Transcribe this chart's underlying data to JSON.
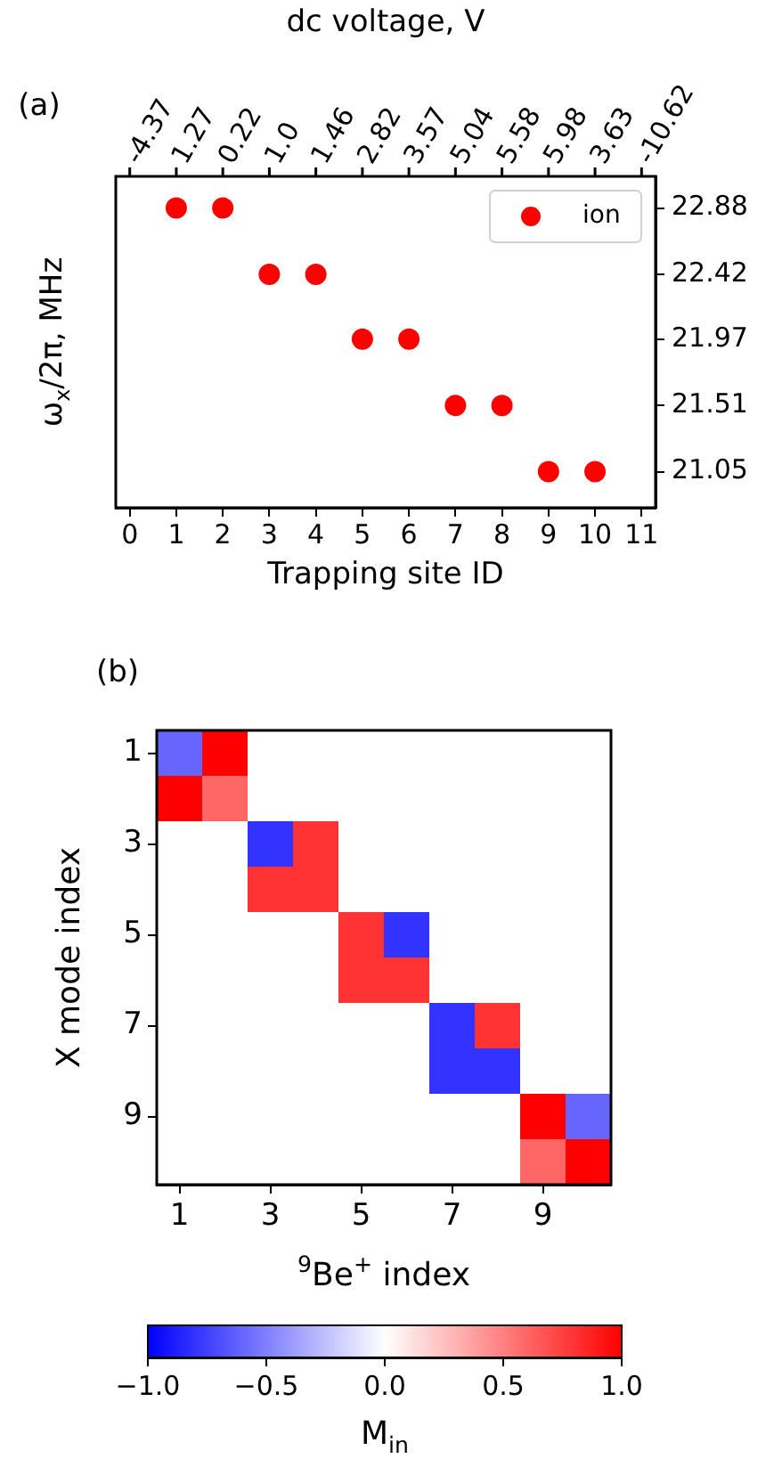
{
  "chart_data": [
    {
      "type": "scatter",
      "x": [
        1,
        2,
        3,
        4,
        5,
        6,
        7,
        8,
        9,
        10
      ],
      "series": [
        {
          "name": "ion",
          "color": "#ff0000",
          "values": [
            22.88,
            22.88,
            22.42,
            22.42,
            21.97,
            21.97,
            21.51,
            21.51,
            21.05,
            21.05
          ]
        }
      ],
      "xlim": [
        -0.3,
        11.3
      ],
      "xticks": [
        0,
        1,
        2,
        3,
        4,
        5,
        6,
        7,
        8,
        9,
        10,
        11
      ],
      "x2label": "dc voltage, V",
      "xlabel": "Trapping site ID",
      "ylabel": "ω$_{x}$/2π, MHz",
      "ylim": [
        20.8,
        23.1
      ],
      "yticks": [
        21.05,
        21.51,
        21.97,
        22.42,
        22.88
      ],
      "annotations": [
        "(a)",
        "-4.37",
        "1.27",
        "0.22",
        "1.0",
        "1.46",
        "2.82",
        "3.57",
        "5.04",
        "5.58",
        "5.98",
        "3.63",
        "-10.62"
      ],
      "legend": "top right",
      "marker": "circle"
    },
    {
      "type": "heatmap",
      "categories": [
        "1",
        null,
        "3",
        null,
        "5",
        null,
        "7",
        null,
        "9",
        null
      ],
      "y_categories": [
        "1",
        null,
        "3",
        null,
        "5",
        null,
        "7",
        null,
        "9",
        null
      ],
      "cells": [
        [
          -0.6,
          1.0,
          0,
          0,
          0,
          0,
          0,
          0,
          0,
          0
        ],
        [
          1.0,
          0.6,
          0,
          0,
          0,
          0,
          0,
          0,
          0,
          0
        ],
        [
          0,
          0,
          -0.8,
          0.8,
          0,
          0,
          0,
          0,
          0,
          0
        ],
        [
          0,
          0,
          0.8,
          0.8,
          0,
          0,
          0,
          0,
          0,
          0
        ],
        [
          0,
          0,
          0,
          0,
          0.8,
          -0.8,
          0,
          0,
          0,
          0
        ],
        [
          0,
          0,
          0,
          0,
          0.8,
          0.8,
          0,
          0,
          0,
          0
        ],
        [
          0,
          0,
          0,
          0,
          0,
          0,
          -0.8,
          0.8,
          0,
          0
        ],
        [
          0,
          0,
          0,
          0,
          0,
          0,
          -0.8,
          -0.8,
          0,
          0
        ],
        [
          0,
          0,
          0,
          0,
          0,
          0,
          0,
          0,
          1.0,
          -0.6
        ],
        [
          0,
          0,
          0,
          0,
          0,
          0,
          0,
          0,
          0.6,
          1.0
        ]
      ],
      "clim": [
        -1,
        1
      ],
      "cticks": [
        {
          "value": -1,
          "label": "−1.0"
        },
        {
          "value": -0.5,
          "label": "−0.5"
        },
        {
          "value": 0,
          "label": "0.0"
        },
        {
          "value": 0.5,
          "label": "0.5"
        },
        {
          "value": 1,
          "label": "1.0"
        }
      ],
      "xlabel": "$^{9}$Be$^{+}$ index",
      "ylabel": "X mode index",
      "clabel": "M$_{in}$",
      "annotations": [
        "(b)"
      ]
    }
  ]
}
